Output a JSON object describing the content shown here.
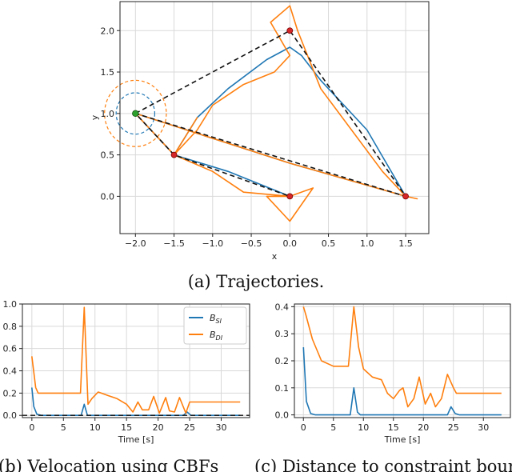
{
  "colors": {
    "blue": "#1f77b4",
    "orange": "#ff7f0e",
    "target": "#d62728",
    "start": "#2ca02c"
  },
  "captions": {
    "a": "(a) Trajectories.",
    "b": "(b) Velocation using CBFs",
    "c": "(c) Distance to constraint boundary"
  },
  "chart_data": [
    {
      "type": "line",
      "xlabel": "x",
      "ylabel": "y",
      "xlim": [
        -2.2,
        1.8
      ],
      "ylim": [
        -0.45,
        2.35
      ],
      "xticks": [
        -2.0,
        -1.5,
        -1.0,
        -0.5,
        0.0,
        0.5,
        1.0,
        1.5
      ],
      "yticks": [
        0.0,
        0.5,
        1.0,
        1.5,
        2.0
      ],
      "xtick_labels": [
        "−2.0",
        "−1.5",
        "−1.0",
        "−0.5",
        "0.0",
        "0.5",
        "1.0",
        "1.5"
      ],
      "ytick_labels": [
        "0.0",
        "0.5",
        "1.0",
        "1.5",
        "2.0"
      ],
      "grid": true,
      "start": [
        -2.0,
        1.0
      ],
      "waypoints": [
        [
          0.0,
          2.0
        ],
        [
          -1.5,
          0.5
        ],
        [
          0.0,
          0.0
        ],
        [
          1.5,
          0.0
        ]
      ],
      "reference_path": [
        [
          -2.0,
          1.0
        ],
        [
          0.0,
          2.0
        ],
        [
          1.5,
          0.0
        ],
        [
          -2.0,
          1.0
        ],
        [
          -1.5,
          0.5
        ],
        [
          0.0,
          0.0
        ]
      ],
      "circles": [
        {
          "center": [
            -2.0,
            1.0
          ],
          "radius": 0.25,
          "style": "dashed",
          "color": "blue"
        },
        {
          "center": [
            -2.0,
            1.0
          ],
          "radius": 0.4,
          "style": "dashed",
          "color": "orange"
        }
      ],
      "series": [
        {
          "color": "blue",
          "points": [
            [
              -1.5,
              0.5
            ],
            [
              -1.2,
              0.95
            ],
            [
              -0.8,
              1.3
            ],
            [
              -0.3,
              1.65
            ],
            [
              0.0,
              1.8
            ],
            [
              0.15,
              1.7
            ],
            [
              0.4,
              1.4
            ],
            [
              1.0,
              0.8
            ],
            [
              1.5,
              0.0
            ],
            [
              0.0,
              0.4
            ],
            [
              -2.0,
              1.0
            ],
            [
              -1.5,
              0.5
            ],
            [
              -0.8,
              0.3
            ],
            [
              0.0,
              0.0
            ]
          ]
        },
        {
          "color": "orange",
          "points": [
            [
              -2.0,
              1.0
            ],
            [
              -1.5,
              0.5
            ],
            [
              -1.2,
              0.8
            ],
            [
              -1.0,
              1.1
            ],
            [
              -0.6,
              1.35
            ],
            [
              -0.2,
              1.5
            ],
            [
              0.0,
              1.7
            ],
            [
              -0.25,
              2.1
            ],
            [
              0.0,
              2.3
            ],
            [
              0.1,
              2.0
            ],
            [
              0.4,
              1.3
            ],
            [
              1.2,
              0.3
            ],
            [
              1.5,
              0.0
            ],
            [
              1.65,
              -0.03
            ],
            [
              1.5,
              0.0
            ],
            [
              0.0,
              0.4
            ],
            [
              -2.0,
              1.0
            ],
            [
              -1.5,
              0.5
            ],
            [
              -1.2,
              0.95
            ],
            [
              -1.5,
              0.5
            ],
            [
              -1.0,
              0.3
            ],
            [
              -0.6,
              0.05
            ],
            [
              0.0,
              0.0
            ],
            [
              0.3,
              0.1
            ],
            [
              0.0,
              -0.3
            ],
            [
              -0.3,
              0.0
            ],
            [
              0.0,
              0.0
            ]
          ]
        }
      ]
    },
    {
      "type": "line",
      "xlabel": "Time [s]",
      "xlim": [
        -1.5,
        34.5
      ],
      "ylim": [
        -0.02,
        1.0
      ],
      "xticks": [
        0,
        5,
        10,
        15,
        20,
        25,
        30
      ],
      "yticks": [
        0.0,
        0.2,
        0.4,
        0.6,
        0.8,
        1.0
      ],
      "xtick_labels": [
        "0",
        "5",
        "10",
        "15",
        "20",
        "25",
        "30"
      ],
      "ytick_labels": [
        "0.0",
        "0.2",
        "0.4",
        "0.6",
        "0.8",
        "1.0"
      ],
      "grid": true,
      "legend": "top-right",
      "reference_y": 0.0,
      "series": [
        {
          "name": "B_SI",
          "label_main": "B",
          "label_sub": "SI",
          "color": "blue",
          "points": [
            [
              0,
              0.25
            ],
            [
              0.3,
              0.08
            ],
            [
              0.8,
              0.01
            ],
            [
              1.5,
              0.0
            ],
            [
              7.8,
              0.0
            ],
            [
              8.3,
              0.1
            ],
            [
              8.8,
              0.0
            ],
            [
              24.0,
              0.0
            ],
            [
              24.6,
              0.03
            ],
            [
              25.2,
              0.0
            ],
            [
              33,
              0.0
            ]
          ]
        },
        {
          "name": "B_DI",
          "label_main": "B",
          "label_sub": "DI",
          "color": "orange",
          "points": [
            [
              0,
              0.53
            ],
            [
              0.6,
              0.25
            ],
            [
              1.0,
              0.2
            ],
            [
              7.7,
              0.2
            ],
            [
              8.3,
              0.97
            ],
            [
              8.9,
              0.1
            ],
            [
              9.5,
              0.15
            ],
            [
              10.5,
              0.21
            ],
            [
              12,
              0.18
            ],
            [
              13.5,
              0.15
            ],
            [
              15,
              0.1
            ],
            [
              16,
              0.03
            ],
            [
              16.8,
              0.12
            ],
            [
              17.5,
              0.05
            ],
            [
              18.5,
              0.05
            ],
            [
              19.3,
              0.17
            ],
            [
              20.2,
              0.02
            ],
            [
              21.2,
              0.16
            ],
            [
              21.8,
              0.04
            ],
            [
              22.6,
              0.03
            ],
            [
              23.4,
              0.16
            ],
            [
              24.4,
              0.02
            ],
            [
              25,
              0.12
            ],
            [
              33,
              0.12
            ]
          ]
        }
      ]
    },
    {
      "type": "line",
      "xlabel": "Time [s]",
      "xlim": [
        -1.5,
        34.5
      ],
      "ylim": [
        -0.01,
        0.41
      ],
      "xticks": [
        0,
        5,
        10,
        15,
        20,
        25,
        30
      ],
      "yticks": [
        0.0,
        0.1,
        0.2,
        0.3,
        0.4
      ],
      "xtick_labels": [
        "0",
        "5",
        "10",
        "15",
        "20",
        "25",
        "30"
      ],
      "ytick_labels": [
        "0.0",
        "0.1",
        "0.2",
        "0.3",
        "0.4"
      ],
      "grid": true,
      "series": [
        {
          "color": "blue",
          "points": [
            [
              0,
              0.25
            ],
            [
              0.5,
              0.05
            ],
            [
              1.2,
              0.005
            ],
            [
              2,
              0.0
            ],
            [
              7.8,
              0.0
            ],
            [
              8.4,
              0.1
            ],
            [
              9,
              0.01
            ],
            [
              9.5,
              0.0
            ],
            [
              24.0,
              0.0
            ],
            [
              24.6,
              0.03
            ],
            [
              25.3,
              0.005
            ],
            [
              26,
              0.0
            ],
            [
              33,
              0.0
            ]
          ]
        },
        {
          "color": "orange",
          "points": [
            [
              0,
              0.4
            ],
            [
              0.4,
              0.37
            ],
            [
              1.5,
              0.28
            ],
            [
              3,
              0.2
            ],
            [
              5,
              0.18
            ],
            [
              7.5,
              0.18
            ],
            [
              8.4,
              0.4
            ],
            [
              9.2,
              0.25
            ],
            [
              10,
              0.17
            ],
            [
              11.5,
              0.14
            ],
            [
              13,
              0.13
            ],
            [
              14,
              0.08
            ],
            [
              15,
              0.06
            ],
            [
              16,
              0.09
            ],
            [
              16.6,
              0.1
            ],
            [
              17.4,
              0.03
            ],
            [
              18.4,
              0.06
            ],
            [
              19.3,
              0.14
            ],
            [
              20.3,
              0.04
            ],
            [
              21.2,
              0.08
            ],
            [
              22,
              0.03
            ],
            [
              23,
              0.06
            ],
            [
              24,
              0.15
            ],
            [
              25,
              0.1
            ],
            [
              25.5,
              0.08
            ],
            [
              33,
              0.08
            ]
          ]
        }
      ]
    }
  ]
}
